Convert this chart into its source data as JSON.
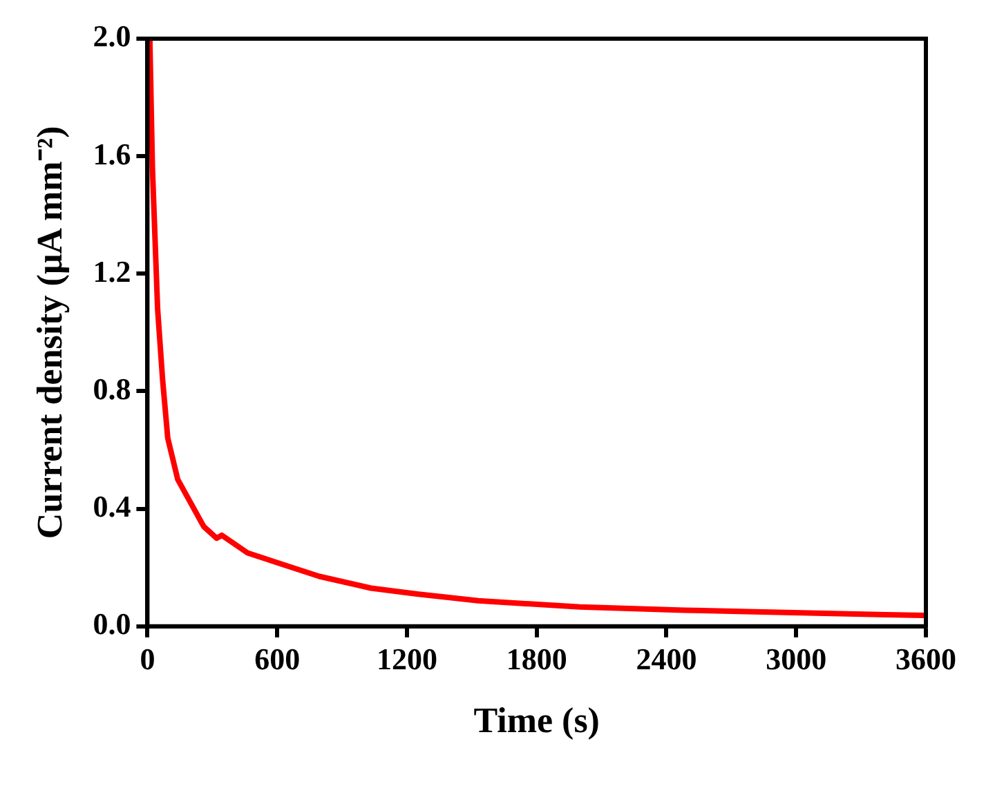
{
  "chart_data": {
    "type": "line",
    "xlabel": "Time (s)",
    "ylabel": "Current density (μA mm⁻²)",
    "x": [
      11,
      23,
      47,
      70,
      94,
      140,
      200,
      260,
      320,
      344,
      463,
      628,
      795,
      1033,
      1246,
      1530,
      2000,
      2480,
      2950,
      3590
    ],
    "series": [
      {
        "color": "#ff0000",
        "values": [
          2.0,
          1.56,
          1.08,
          0.84,
          0.64,
          0.5,
          0.42,
          0.34,
          0.3,
          0.31,
          0.25,
          0.21,
          0.17,
          0.13,
          0.11,
          0.087,
          0.066,
          0.055,
          0.047,
          0.037
        ]
      }
    ],
    "xlim": [
      0,
      3600
    ],
    "xticks": [
      0,
      600,
      1200,
      1800,
      2400,
      3000,
      3600
    ],
    "ylim": [
      0,
      2.0
    ],
    "yticks": [
      {
        "value": 0,
        "label": "0.0"
      },
      {
        "value": 0.4,
        "label": "0.4"
      },
      {
        "value": 0.8,
        "label": "0.8"
      },
      {
        "value": 1.2,
        "label": "1.2"
      },
      {
        "value": 1.6,
        "label": "1.6"
      },
      {
        "value": 2.0,
        "label": "2.0"
      }
    ],
    "grid": false,
    "legend": false,
    "marker": "none",
    "line_style": "solid"
  }
}
